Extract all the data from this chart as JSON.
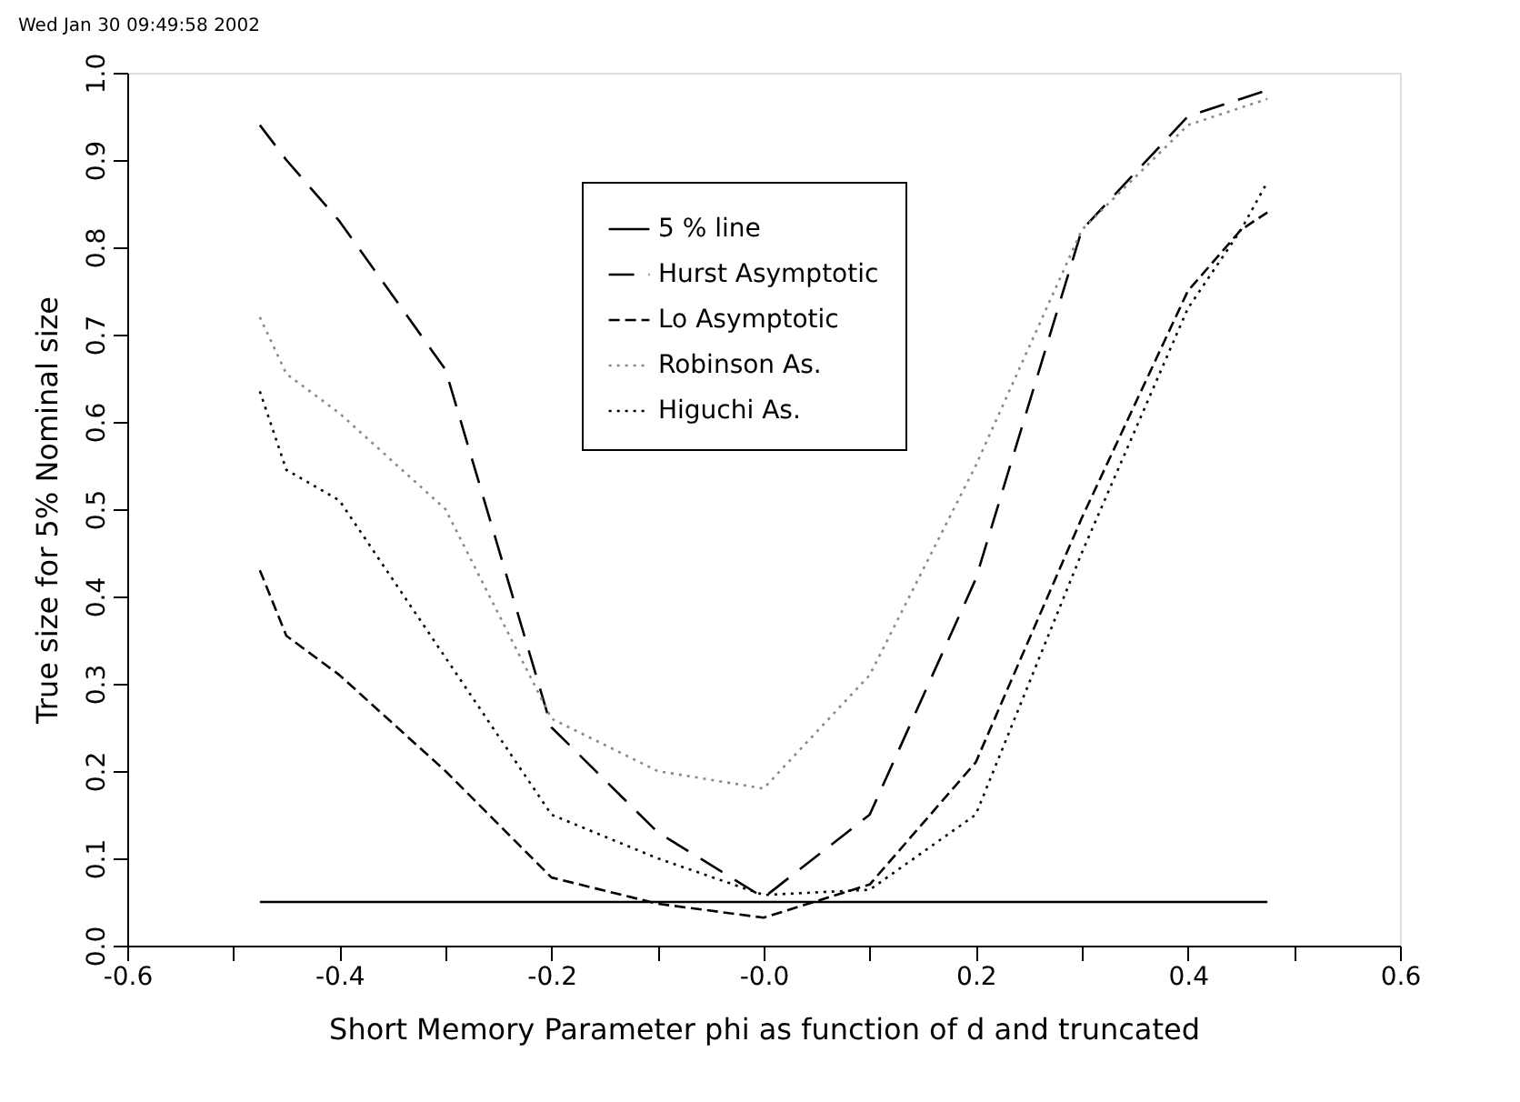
{
  "chart_data": {
    "type": "line",
    "xlabel": "Short Memory Parameter phi as function of d and truncated",
    "ylabel": "True size for 5% Nominal size",
    "annotations": [
      "Wed Jan 30 09:49:58 2002"
    ],
    "x": [
      -0.475,
      -0.45,
      -0.4,
      -0.3,
      -0.2,
      -0.1,
      0,
      0.1,
      0.2,
      0.3,
      0.4,
      0.45,
      0.475
    ],
    "series": [
      {
        "name": "5 % line",
        "color": "#000000",
        "line_style": "solid",
        "values": [
          0.05,
          0.05,
          0.05,
          0.05,
          0.05,
          0.05,
          0.05,
          0.05,
          0.05,
          0.05,
          0.05,
          0.05,
          0.05
        ]
      },
      {
        "name": "Hurst Asymptotic",
        "color": "#000000",
        "line_style": "dashed",
        "values": [
          0.94,
          0.9,
          0.83,
          0.66,
          0.25,
          0.13,
          0.055,
          0.15,
          0.42,
          0.82,
          0.95,
          0.97,
          0.98
        ]
      },
      {
        "name": "Lo Asymptotic",
        "color": "#000000",
        "line_style": "dashed",
        "values": [
          0.43,
          0.355,
          0.31,
          0.2,
          0.078,
          0.048,
          0.032,
          0.07,
          0.21,
          0.49,
          0.75,
          0.82,
          0.84
        ]
      },
      {
        "name": "Robinson As.",
        "color": "#888888",
        "line_style": "dotted",
        "values": [
          0.72,
          0.655,
          0.61,
          0.5,
          0.26,
          0.2,
          0.18,
          0.31,
          0.55,
          0.82,
          0.94,
          0.96,
          0.97
        ]
      },
      {
        "name": "Higuchi As.",
        "color": "#000000",
        "line_style": "dotted",
        "values": [
          0.635,
          0.545,
          0.51,
          0.33,
          0.15,
          0.1,
          0.058,
          0.064,
          0.15,
          0.45,
          0.73,
          0.82,
          0.875
        ]
      }
    ],
    "xlim": [
      -0.6,
      0.6
    ],
    "xticks": [
      {
        "value": -0.6,
        "label": "-0.6"
      },
      {
        "value": -0.5,
        "label": null
      },
      {
        "value": -0.4,
        "label": "-0.4"
      },
      {
        "value": -0.3,
        "label": null
      },
      {
        "value": -0.2,
        "label": "-0.2"
      },
      {
        "value": -0.1,
        "label": null
      },
      {
        "value": 0,
        "label": "-0.0"
      },
      {
        "value": 0.1,
        "label": null
      },
      {
        "value": 0.2,
        "label": "0.2"
      },
      {
        "value": 0.3,
        "label": null
      },
      {
        "value": 0.4,
        "label": "0.4"
      },
      {
        "value": 0.5,
        "label": null
      },
      {
        "value": 0.6,
        "label": "0.6"
      }
    ],
    "ylim": [
      0,
      1
    ],
    "yticks": [
      {
        "value": 0,
        "label": "0.0"
      },
      {
        "value": 0.1,
        "label": "0.1"
      },
      {
        "value": 0.2,
        "label": "0.2"
      },
      {
        "value": 0.3,
        "label": "0.3"
      },
      {
        "value": 0.4,
        "label": "0.4"
      },
      {
        "value": 0.5,
        "label": "0.5"
      },
      {
        "value": 0.6,
        "label": "0.6"
      },
      {
        "value": 0.7,
        "label": "0.7"
      },
      {
        "value": 0.8,
        "label": "0.8"
      },
      {
        "value": 0.9,
        "label": "0.9"
      },
      {
        "value": 1,
        "label": "1.0"
      }
    ],
    "grid": false,
    "legend": "top",
    "marker": "none"
  }
}
